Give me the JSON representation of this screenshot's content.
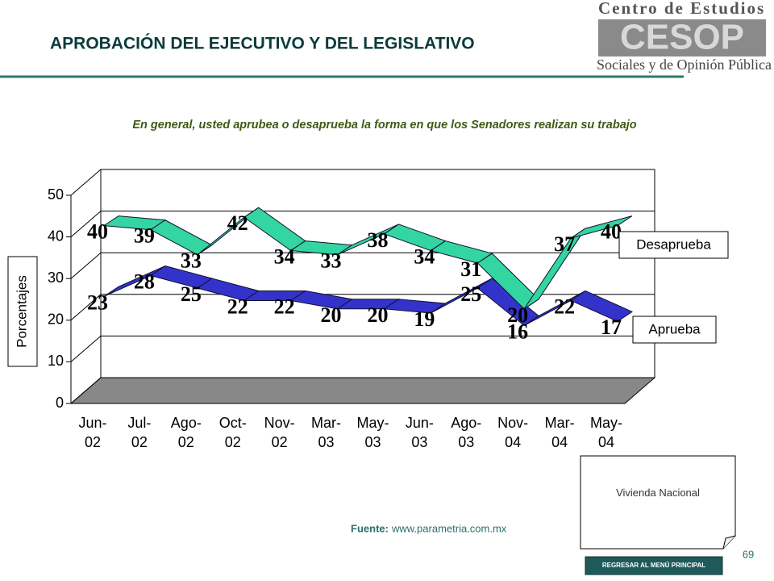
{
  "header": {
    "title": "APROBACIÓN DEL EJECUTIVO Y DEL LEGISLATIVO",
    "logo_top": "Centro de Estudios",
    "logo_mid": "CESOP",
    "logo_bottom": "Sociales y de Opinión Pública"
  },
  "chart_data": {
    "type": "line3d",
    "title": "En general, usted aprubea o desaprueba la forma en que los Senadores realizan su trabajo",
    "ylabel": "Porcentajes",
    "categories": [
      "Jun-02",
      "Jul-02",
      "Ago-02",
      "Oct-02",
      "Nov-02",
      "Mar-03",
      "May-03",
      "Jun-03",
      "Ago-03",
      "Nov-04",
      "Mar-04",
      "May-04"
    ],
    "series": [
      {
        "name": "Aprueba",
        "color": "#3333cc",
        "values": [
          23,
          28,
          25,
          22,
          22,
          20,
          20,
          19,
          25,
          16,
          22,
          17
        ]
      },
      {
        "name": "Desaprueba",
        "color": "#33d6a0",
        "values": [
          40,
          39,
          33,
          42,
          34,
          33,
          38,
          34,
          31,
          20,
          37,
          40
        ]
      }
    ],
    "ylim": [
      0,
      50
    ],
    "yticks": [
      0,
      10,
      20,
      30,
      40,
      50
    ],
    "grid": true
  },
  "source": {
    "label": "Fuente:",
    "url": "www.parametria.com.mx"
  },
  "side_box": "Vivienda Nacional",
  "page_number": "69",
  "button": "REGRESAR AL MENÚ PRINCIPAL"
}
